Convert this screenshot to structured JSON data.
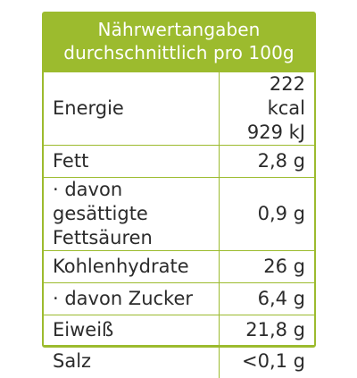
{
  "title": {
    "line1": "Nährwertangaben",
    "line2": "durchschnittlich pro 100g"
  },
  "rows": [
    {
      "name": [
        "Energie"
      ],
      "value": [
        "222 kcal",
        "929 kJ"
      ]
    },
    {
      "name": [
        "Fett"
      ],
      "value": [
        "2,8 g"
      ]
    },
    {
      "name": [
        "· davon gesättigte",
        "Fettsäuren"
      ],
      "value": [
        "0,9 g"
      ]
    },
    {
      "name": [
        "Kohlenhydrate"
      ],
      "value": [
        "26 g"
      ]
    },
    {
      "name": [
        "· davon Zucker"
      ],
      "value": [
        "6,4 g"
      ]
    },
    {
      "name": [
        "Eiweiß"
      ],
      "value": [
        "21,8 g"
      ]
    },
    {
      "name": [
        "Salz"
      ],
      "value": [
        "<0,1 g"
      ]
    }
  ],
  "colors": {
    "accent": "#9cbb2e",
    "text": "#2b2b2b",
    "header_text": "#ffffff"
  }
}
